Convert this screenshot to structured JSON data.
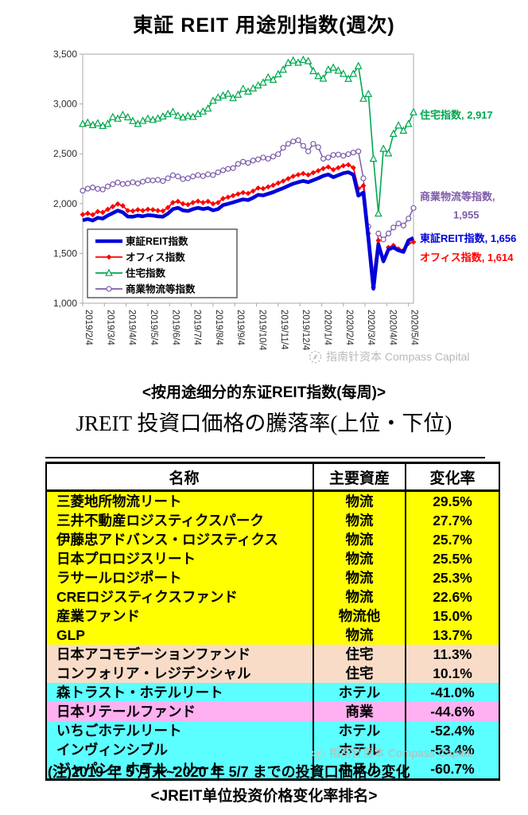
{
  "header": {
    "chart_title": "東証 REIT 用途別指数(週次)"
  },
  "captions": {
    "chart_caption": "<按用途细分的东证REIT指数(每周)>",
    "table_title": "JREIT 投資口価格の騰落率(上位・下位)",
    "note": "(注)2019 年 5 月末~2020 年 5/7 までの投資口価格の変化",
    "table_caption": "<JREIT单位投资价格变化率排名>"
  },
  "watermark": {
    "text": "指南针资本 Compass Capital"
  },
  "chart_data": {
    "type": "line",
    "title": "東証 REIT 用途別指数(週次)",
    "x_tick_labels": [
      "2019/2/4",
      "2019/3/4",
      "2019/4/4",
      "2019/5/4",
      "2019/6/4",
      "2019/7/4",
      "2019/8/4",
      "2019/9/4",
      "2019/10/4",
      "2019/11/4",
      "2019/12/4",
      "2020/1/4",
      "2020/2/4",
      "2020/3/4",
      "2020/4/4",
      "2020/5/4"
    ],
    "y_tick_labels": [
      "1,000",
      "1,500",
      "2,000",
      "2,500",
      "3,000",
      "3,500"
    ],
    "ylim": [
      1000,
      3500
    ],
    "grid": false,
    "legend": {
      "position": "inside-bottom-left",
      "entries": [
        "東証REIT指数",
        "オフィス指数",
        "住宅指数",
        "商業物流等指数"
      ]
    },
    "series": [
      {
        "name": "東証REIT指数",
        "color": "#0000db",
        "marker": "none",
        "line_width": 4.6,
        "draw_order": 4,
        "end_label_lines": [
          "東証REIT指数, 1,656"
        ],
        "label_dy": 5,
        "end_value": 1656,
        "values": [
          1832,
          1845,
          1830,
          1858,
          1850,
          1880,
          1905,
          1930,
          1912,
          1870,
          1868,
          1880,
          1872,
          1884,
          1880,
          1872,
          1868,
          1900,
          1945,
          1958,
          1932,
          1926,
          1945,
          1958,
          1945,
          1955,
          1932,
          1945,
          1985,
          1998,
          2012,
          2028,
          2042,
          2035,
          2058,
          2088,
          2082,
          2098,
          2114,
          2136,
          2155,
          2178,
          2200,
          2215,
          2228,
          2215,
          2235,
          2255,
          2278,
          2292,
          2265,
          2285,
          2305,
          2315,
          2290,
          2080,
          2110,
          1650,
          1145,
          1590,
          1420,
          1540,
          1560,
          1530,
          1515,
          1630,
          1656
        ]
      },
      {
        "name": "オフィス指数",
        "color": "#ff0000",
        "marker": "diamond",
        "line_width": 1.8,
        "draw_order": 3,
        "end_label_lines": [
          "オフィス指数, 1,614"
        ],
        "label_dy": 24,
        "end_value": 1614,
        "values": [
          1890,
          1902,
          1888,
          1920,
          1912,
          1942,
          1970,
          1996,
          1978,
          1930,
          1926,
          1938,
          1930,
          1942,
          1938,
          1930,
          1926,
          1960,
          2010,
          2022,
          1998,
          1990,
          2010,
          2024,
          2010,
          2022,
          1998,
          2010,
          2050,
          2064,
          2080,
          2096,
          2110,
          2102,
          2126,
          2156,
          2150,
          2168,
          2184,
          2206,
          2226,
          2250,
          2274,
          2290,
          2302,
          2288,
          2310,
          2330,
          2352,
          2368,
          2340,
          2360,
          2380,
          2390,
          2360,
          2150,
          2180,
          1700,
          1160,
          1630,
          1440,
          1560,
          1580,
          1545,
          1530,
          1600,
          1614
        ]
      },
      {
        "name": "住宅指数",
        "color": "#00a84f",
        "marker": "triangle",
        "line_width": 1.6,
        "draw_order": 1,
        "end_label_lines": [
          "住宅指数, 2,917"
        ],
        "label_dy": 8,
        "end_value": 2917,
        "values": [
          2800,
          2812,
          2788,
          2806,
          2780,
          2800,
          2868,
          2852,
          2890,
          2866,
          2828,
          2800,
          2830,
          2852,
          2840,
          2854,
          2874,
          2898,
          2920,
          2882,
          2864,
          2880,
          2870,
          2900,
          2924,
          2954,
          3032,
          3064,
          3084,
          3102,
          3058,
          3092,
          3152,
          3124,
          3156,
          3186,
          3214,
          3266,
          3242,
          3298,
          3344,
          3412,
          3436,
          3414,
          3442,
          3430,
          3330,
          3280,
          3254,
          3344,
          3364,
          3334,
          3302,
          3252,
          3302,
          3380,
          3052,
          3100,
          2450,
          1900,
          2550,
          2504,
          2700,
          2784,
          2732,
          2800,
          2917
        ]
      },
      {
        "name": "商業物流等指数",
        "color": "#7d5ba8",
        "marker": "circle",
        "line_width": 1.5,
        "draw_order": 2,
        "end_label_lines": [
          "商業物流等指数,",
          "1,955"
        ],
        "label_dy": -10,
        "end_value": 1955,
        "values": [
          2130,
          2150,
          2162,
          2148,
          2142,
          2172,
          2194,
          2212,
          2196,
          2202,
          2214,
          2202,
          2220,
          2234,
          2232,
          2238,
          2226,
          2254,
          2284,
          2272,
          2246,
          2254,
          2272,
          2286,
          2276,
          2294,
          2286,
          2314,
          2334,
          2348,
          2356,
          2398,
          2420,
          2408,
          2432,
          2444,
          2462,
          2450,
          2472,
          2496,
          2560,
          2600,
          2624,
          2636,
          2580,
          2524,
          2600,
          2566,
          2450,
          2462,
          2488,
          2492,
          2480,
          2496,
          2512,
          2524,
          2254,
          1770,
          1300,
          1700,
          1640,
          1700,
          1760,
          1800,
          1780,
          1850,
          1955
        ]
      }
    ]
  },
  "table": {
    "headers": [
      "名称",
      "主要資産",
      "変化率"
    ],
    "rows": [
      {
        "name": "三菱地所物流リート",
        "asset": "物流",
        "change": "29.5%",
        "bg": "#ffff00"
      },
      {
        "name": "三井不動産ロジスティクスパーク",
        "asset": "物流",
        "change": "27.7%",
        "bg": "#ffff00"
      },
      {
        "name": "伊藤忠アドバンス・ロジスティクス",
        "asset": "物流",
        "change": "25.7%",
        "bg": "#ffff00"
      },
      {
        "name": "日本プロロジスリート",
        "asset": "物流",
        "change": "25.5%",
        "bg": "#ffff00"
      },
      {
        "name": "ラサールロジポート",
        "asset": "物流",
        "change": "25.3%",
        "bg": "#ffff00"
      },
      {
        "name": "CREロジスティクスファンド",
        "asset": "物流",
        "change": "22.6%",
        "bg": "#ffff00"
      },
      {
        "name": "産業ファンド",
        "asset": "物流他",
        "change": "15.0%",
        "bg": "#ffff00"
      },
      {
        "name": "GLP",
        "asset": "物流",
        "change": "13.7%",
        "bg": "#ffff00"
      },
      {
        "name": "日本アコモデーションファンド",
        "asset": "住宅",
        "change": "11.3%",
        "bg": "#f8dcc8"
      },
      {
        "name": "コンフォリア・レジデンシャル",
        "asset": "住宅",
        "change": "10.1%",
        "bg": "#f8dcc8"
      },
      {
        "name": "森トラスト・ホテルリート",
        "asset": "ホテル",
        "change": "-41.0%",
        "bg": "#5cffff"
      },
      {
        "name": "日本リテールファンド",
        "asset": "商業",
        "change": "-44.6%",
        "bg": "#ffb0f0"
      },
      {
        "name": "いちごホテルリート",
        "asset": "ホテル",
        "change": "-52.4%",
        "bg": "#5cffff"
      },
      {
        "name": "インヴィンシブル",
        "asset": "ホテル",
        "change": "-53.4%",
        "bg": "#5cffff"
      },
      {
        "name": "ジャパン・ホテル・リート",
        "asset": "ホテル",
        "change": "-60.7%",
        "bg": "#5cffff"
      }
    ]
  }
}
